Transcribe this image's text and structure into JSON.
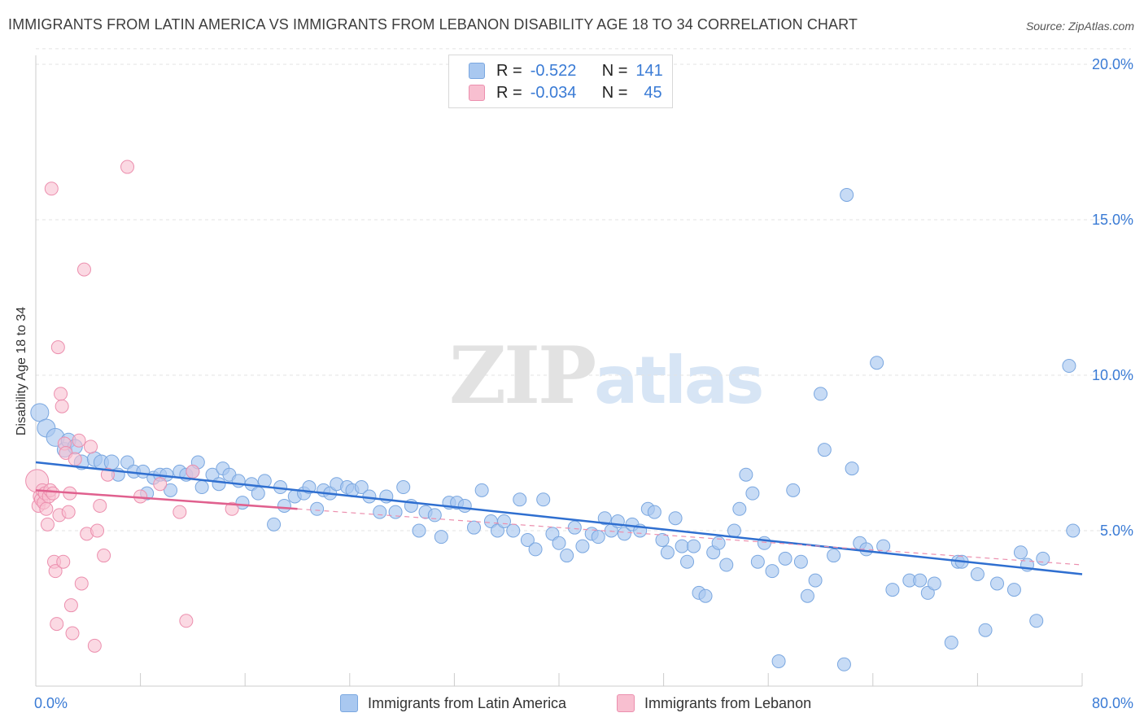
{
  "title": "IMMIGRANTS FROM LATIN AMERICA VS IMMIGRANTS FROM LEBANON DISABILITY AGE 18 TO 34 CORRELATION CHART",
  "source": "Source: ZipAtlas.com",
  "watermark": {
    "part1": "ZIP",
    "part2": "atlas"
  },
  "legend": {
    "rows": [
      {
        "r_label": "R =",
        "r_value": "-0.522",
        "n_label": "N =",
        "n_value": "141",
        "color": "#a9c8f0",
        "border": "#7aa7e0"
      },
      {
        "r_label": "R =",
        "r_value": "-0.034",
        "n_label": "N =",
        "n_value": "45",
        "color": "#f8bfd0",
        "border": "#ec8fae"
      }
    ]
  },
  "bottom_legend": [
    {
      "label": "Immigrants from Latin America",
      "color": "#a9c8f0",
      "border": "#7aa7e0"
    },
    {
      "label": "Immigrants from Lebanon",
      "color": "#f8bfd0",
      "border": "#ec8fae"
    }
  ],
  "chart_data": {
    "type": "scatter",
    "title": "IMMIGRANTS FROM LATIN AMERICA VS IMMIGRANTS FROM LEBANON DISABILITY AGE 18 TO 34 CORRELATION CHART",
    "xlabel": "",
    "ylabel": "Disability Age 18 to 34",
    "xlim": [
      0,
      80
    ],
    "ylim": [
      0,
      21
    ],
    "x_tick_labels": [
      "0.0%",
      "80.0%"
    ],
    "y_ticks": [
      5,
      10,
      15,
      20
    ],
    "y_tick_labels": [
      "5.0%",
      "10.0%",
      "15.0%",
      "20.0%"
    ],
    "grid": true,
    "legend_position": "top-center",
    "series": [
      {
        "name": "Immigrants from Latin America",
        "color": "#7aa7e0",
        "fill": "#a9c8f0",
        "trend": {
          "x": [
            0,
            80
          ],
          "y": [
            7.2,
            3.6
          ]
        },
        "points": [
          [
            0.3,
            8.8
          ],
          [
            0.8,
            8.3
          ],
          [
            1.5,
            8.0
          ],
          [
            2.2,
            7.6
          ],
          [
            2.5,
            7.9
          ],
          [
            3.0,
            7.7
          ],
          [
            3.5,
            7.2
          ],
          [
            4.5,
            7.3
          ],
          [
            5.0,
            7.2
          ],
          [
            5.8,
            7.2
          ],
          [
            6.3,
            6.8
          ],
          [
            7.0,
            7.2
          ],
          [
            7.5,
            6.9
          ],
          [
            8.2,
            6.9
          ],
          [
            8.5,
            6.2
          ],
          [
            9.0,
            6.7
          ],
          [
            9.5,
            6.8
          ],
          [
            10.0,
            6.8
          ],
          [
            10.3,
            6.3
          ],
          [
            11.0,
            6.9
          ],
          [
            11.5,
            6.8
          ],
          [
            12.0,
            6.9
          ],
          [
            12.4,
            7.2
          ],
          [
            12.7,
            6.4
          ],
          [
            13.5,
            6.8
          ],
          [
            14.0,
            6.5
          ],
          [
            14.3,
            7.0
          ],
          [
            14.8,
            6.8
          ],
          [
            15.5,
            6.6
          ],
          [
            15.8,
            5.9
          ],
          [
            16.5,
            6.5
          ],
          [
            17.0,
            6.2
          ],
          [
            17.5,
            6.6
          ],
          [
            18.2,
            5.2
          ],
          [
            18.7,
            6.4
          ],
          [
            19.0,
            5.8
          ],
          [
            19.8,
            6.1
          ],
          [
            20.5,
            6.2
          ],
          [
            20.9,
            6.4
          ],
          [
            21.5,
            5.7
          ],
          [
            22.0,
            6.3
          ],
          [
            22.5,
            6.2
          ],
          [
            23.0,
            6.5
          ],
          [
            23.8,
            6.4
          ],
          [
            24.2,
            6.3
          ],
          [
            24.9,
            6.4
          ],
          [
            25.5,
            6.1
          ],
          [
            26.3,
            5.6
          ],
          [
            26.8,
            6.1
          ],
          [
            27.5,
            5.6
          ],
          [
            28.1,
            6.4
          ],
          [
            28.7,
            5.8
          ],
          [
            29.3,
            5.0
          ],
          [
            29.8,
            5.6
          ],
          [
            30.5,
            5.5
          ],
          [
            31.0,
            4.8
          ],
          [
            31.6,
            5.9
          ],
          [
            32.2,
            5.9
          ],
          [
            32.8,
            5.8
          ],
          [
            33.5,
            5.1
          ],
          [
            34.1,
            6.3
          ],
          [
            34.8,
            5.3
          ],
          [
            35.3,
            5.0
          ],
          [
            35.8,
            5.3
          ],
          [
            36.5,
            5.0
          ],
          [
            37.0,
            6.0
          ],
          [
            37.6,
            4.7
          ],
          [
            38.2,
            4.4
          ],
          [
            38.8,
            6.0
          ],
          [
            39.5,
            4.9
          ],
          [
            40.0,
            4.6
          ],
          [
            40.6,
            4.2
          ],
          [
            41.2,
            5.1
          ],
          [
            41.8,
            4.5
          ],
          [
            42.5,
            4.9
          ],
          [
            43.0,
            4.8
          ],
          [
            43.5,
            5.4
          ],
          [
            44.0,
            5.0
          ],
          [
            44.5,
            5.3
          ],
          [
            45.0,
            4.9
          ],
          [
            45.6,
            5.2
          ],
          [
            46.2,
            5.0
          ],
          [
            46.8,
            5.7
          ],
          [
            47.3,
            5.6
          ],
          [
            47.9,
            4.7
          ],
          [
            48.3,
            4.3
          ],
          [
            48.9,
            5.4
          ],
          [
            49.4,
            4.5
          ],
          [
            49.8,
            4.0
          ],
          [
            50.3,
            4.5
          ],
          [
            50.7,
            3.0
          ],
          [
            51.2,
            2.9
          ],
          [
            51.8,
            4.3
          ],
          [
            52.2,
            4.6
          ],
          [
            52.8,
            3.9
          ],
          [
            53.4,
            5.0
          ],
          [
            53.8,
            5.7
          ],
          [
            54.3,
            6.8
          ],
          [
            54.8,
            6.2
          ],
          [
            55.2,
            4.0
          ],
          [
            55.7,
            4.6
          ],
          [
            56.3,
            3.7
          ],
          [
            56.8,
            0.8
          ],
          [
            57.3,
            4.1
          ],
          [
            57.9,
            6.3
          ],
          [
            58.5,
            4.0
          ],
          [
            59.0,
            2.9
          ],
          [
            59.6,
            3.4
          ],
          [
            60.0,
            9.4
          ],
          [
            60.3,
            7.6
          ],
          [
            61.0,
            4.2
          ],
          [
            61.8,
            0.7
          ],
          [
            62.0,
            15.8
          ],
          [
            62.4,
            7.0
          ],
          [
            63.0,
            4.6
          ],
          [
            63.5,
            4.4
          ],
          [
            64.3,
            10.4
          ],
          [
            64.8,
            4.5
          ],
          [
            65.5,
            3.1
          ],
          [
            66.8,
            3.4
          ],
          [
            67.6,
            3.4
          ],
          [
            68.2,
            3.0
          ],
          [
            68.7,
            3.3
          ],
          [
            70.0,
            1.4
          ],
          [
            70.5,
            4.0
          ],
          [
            70.8,
            4.0
          ],
          [
            72.0,
            3.6
          ],
          [
            72.6,
            1.8
          ],
          [
            73.5,
            3.3
          ],
          [
            74.8,
            3.1
          ],
          [
            75.3,
            4.3
          ],
          [
            75.8,
            3.9
          ],
          [
            76.5,
            2.1
          ],
          [
            77.0,
            4.1
          ],
          [
            79.0,
            10.3
          ],
          [
            79.3,
            5.0
          ]
        ]
      },
      {
        "name": "Immigrants from Lebanon",
        "color": "#ec8fae",
        "fill": "#f8bfd0",
        "trend": {
          "x": [
            0,
            20
          ],
          "y": [
            6.3,
            5.7
          ]
        },
        "trend_dashed": {
          "x": [
            20,
            80
          ],
          "y": [
            5.7,
            3.9
          ]
        },
        "points": [
          [
            0.1,
            6.6
          ],
          [
            0.2,
            5.8
          ],
          [
            0.3,
            6.1
          ],
          [
            0.4,
            6.0
          ],
          [
            0.5,
            6.3
          ],
          [
            0.6,
            5.9
          ],
          [
            0.7,
            6.2
          ],
          [
            0.8,
            5.7
          ],
          [
            0.9,
            5.2
          ],
          [
            1.0,
            6.1
          ],
          [
            1.1,
            6.3
          ],
          [
            1.2,
            16.0
          ],
          [
            1.3,
            6.2
          ],
          [
            1.4,
            4.0
          ],
          [
            1.5,
            3.7
          ],
          [
            1.6,
            2.0
          ],
          [
            1.7,
            10.9
          ],
          [
            1.8,
            5.5
          ],
          [
            1.9,
            9.4
          ],
          [
            2.0,
            9.0
          ],
          [
            2.1,
            4.0
          ],
          [
            2.2,
            7.8
          ],
          [
            2.3,
            7.5
          ],
          [
            2.5,
            5.6
          ],
          [
            2.6,
            6.2
          ],
          [
            2.7,
            2.6
          ],
          [
            2.8,
            1.7
          ],
          [
            3.0,
            7.3
          ],
          [
            3.3,
            7.9
          ],
          [
            3.5,
            3.3
          ],
          [
            3.7,
            13.4
          ],
          [
            3.9,
            4.9
          ],
          [
            4.2,
            7.7
          ],
          [
            4.5,
            1.3
          ],
          [
            4.7,
            5.0
          ],
          [
            4.9,
            5.8
          ],
          [
            5.2,
            4.2
          ],
          [
            5.5,
            6.8
          ],
          [
            7.0,
            16.7
          ],
          [
            8.0,
            6.1
          ],
          [
            9.5,
            6.5
          ],
          [
            11.0,
            5.6
          ],
          [
            11.5,
            2.1
          ],
          [
            12.0,
            6.9
          ],
          [
            15.0,
            5.7
          ]
        ]
      }
    ]
  }
}
